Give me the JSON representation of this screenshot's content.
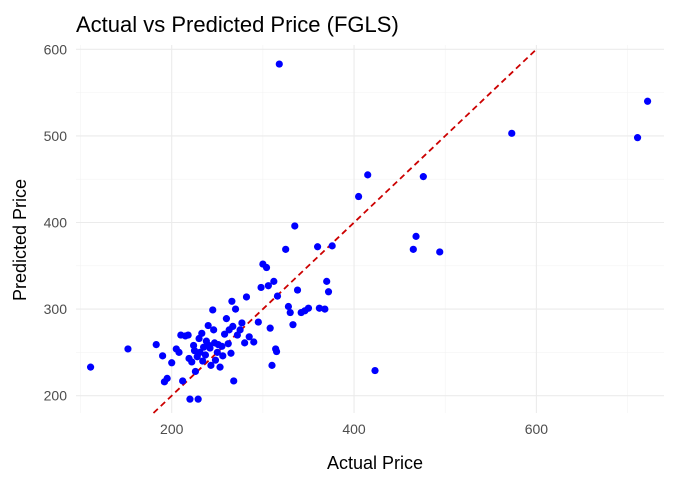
{
  "chart_data": {
    "type": "scatter",
    "title": "Actual vs Predicted Price (FGLS)",
    "xlabel": "Actual Price",
    "ylabel": "Predicted Price",
    "xlim": [
      95,
      740
    ],
    "ylim": [
      180,
      605
    ],
    "x_ticks": [
      200,
      400,
      600
    ],
    "y_ticks": [
      200,
      300,
      400,
      500,
      600
    ],
    "x_minor_ticks": [
      100,
      300,
      500,
      700
    ],
    "y_minor_ticks": [
      250,
      350,
      450,
      550
    ],
    "grid": true,
    "legend": "none",
    "colors": {
      "points": "#0000ff",
      "reference_line": "#cc0000"
    },
    "reference_line": {
      "style": "dashed",
      "from": [
        180,
        180
      ],
      "to": [
        600,
        600
      ]
    },
    "points": [
      {
        "x": 111,
        "y": 233
      },
      {
        "x": 152,
        "y": 254
      },
      {
        "x": 183,
        "y": 259
      },
      {
        "x": 190,
        "y": 246
      },
      {
        "x": 192,
        "y": 216
      },
      {
        "x": 195,
        "y": 220
      },
      {
        "x": 200,
        "y": 238
      },
      {
        "x": 205,
        "y": 254
      },
      {
        "x": 208,
        "y": 250
      },
      {
        "x": 210,
        "y": 270
      },
      {
        "x": 212,
        "y": 217
      },
      {
        "x": 215,
        "y": 269
      },
      {
        "x": 218,
        "y": 270
      },
      {
        "x": 219,
        "y": 243
      },
      {
        "x": 220,
        "y": 196
      },
      {
        "x": 222,
        "y": 239
      },
      {
        "x": 224,
        "y": 258
      },
      {
        "x": 225,
        "y": 252
      },
      {
        "x": 226,
        "y": 228
      },
      {
        "x": 228,
        "y": 245
      },
      {
        "x": 229,
        "y": 196
      },
      {
        "x": 230,
        "y": 266
      },
      {
        "x": 231,
        "y": 250
      },
      {
        "x": 233,
        "y": 272
      },
      {
        "x": 234,
        "y": 240
      },
      {
        "x": 235,
        "y": 256
      },
      {
        "x": 237,
        "y": 247
      },
      {
        "x": 238,
        "y": 263
      },
      {
        "x": 240,
        "y": 281
      },
      {
        "x": 241,
        "y": 258
      },
      {
        "x": 242,
        "y": 255
      },
      {
        "x": 243,
        "y": 235
      },
      {
        "x": 245,
        "y": 299
      },
      {
        "x": 246,
        "y": 276
      },
      {
        "x": 247,
        "y": 261
      },
      {
        "x": 248,
        "y": 241
      },
      {
        "x": 250,
        "y": 250
      },
      {
        "x": 251,
        "y": 259
      },
      {
        "x": 253,
        "y": 233
      },
      {
        "x": 255,
        "y": 257
      },
      {
        "x": 256,
        "y": 246
      },
      {
        "x": 258,
        "y": 271
      },
      {
        "x": 260,
        "y": 289
      },
      {
        "x": 262,
        "y": 260
      },
      {
        "x": 263,
        "y": 276
      },
      {
        "x": 265,
        "y": 249
      },
      {
        "x": 266,
        "y": 309
      },
      {
        "x": 267,
        "y": 280
      },
      {
        "x": 268,
        "y": 217
      },
      {
        "x": 270,
        "y": 300
      },
      {
        "x": 272,
        "y": 270
      },
      {
        "x": 275,
        "y": 276
      },
      {
        "x": 277,
        "y": 284
      },
      {
        "x": 280,
        "y": 261
      },
      {
        "x": 282,
        "y": 314
      },
      {
        "x": 285,
        "y": 268
      },
      {
        "x": 290,
        "y": 262
      },
      {
        "x": 295,
        "y": 285
      },
      {
        "x": 298,
        "y": 325
      },
      {
        "x": 300,
        "y": 352
      },
      {
        "x": 304,
        "y": 348
      },
      {
        "x": 306,
        "y": 327
      },
      {
        "x": 308,
        "y": 278
      },
      {
        "x": 310,
        "y": 235
      },
      {
        "x": 312,
        "y": 332
      },
      {
        "x": 314,
        "y": 254
      },
      {
        "x": 315,
        "y": 251
      },
      {
        "x": 316,
        "y": 315
      },
      {
        "x": 318,
        "y": 583
      },
      {
        "x": 325,
        "y": 369
      },
      {
        "x": 328,
        "y": 303
      },
      {
        "x": 330,
        "y": 296
      },
      {
        "x": 333,
        "y": 282
      },
      {
        "x": 335,
        "y": 396
      },
      {
        "x": 338,
        "y": 322
      },
      {
        "x": 342,
        "y": 296
      },
      {
        "x": 346,
        "y": 298
      },
      {
        "x": 350,
        "y": 301
      },
      {
        "x": 360,
        "y": 372
      },
      {
        "x": 362,
        "y": 301
      },
      {
        "x": 368,
        "y": 300
      },
      {
        "x": 370,
        "y": 332
      },
      {
        "x": 372,
        "y": 320
      },
      {
        "x": 376,
        "y": 373
      },
      {
        "x": 405,
        "y": 430
      },
      {
        "x": 415,
        "y": 455
      },
      {
        "x": 423,
        "y": 229
      },
      {
        "x": 465,
        "y": 369
      },
      {
        "x": 468,
        "y": 384
      },
      {
        "x": 476,
        "y": 453
      },
      {
        "x": 494,
        "y": 366
      },
      {
        "x": 573,
        "y": 503
      },
      {
        "x": 711,
        "y": 498
      },
      {
        "x": 722,
        "y": 540
      }
    ]
  }
}
